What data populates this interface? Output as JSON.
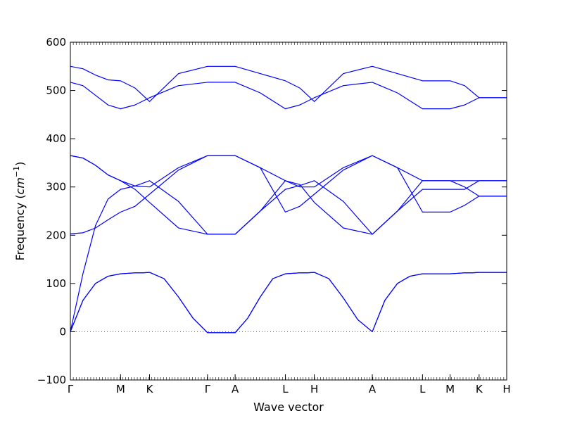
{
  "chart_data": {
    "type": "line",
    "title": "",
    "xlabel": "Wave vector",
    "ylabel": "Frequency",
    "ylabel_unit": "cm",
    "ylabel_unit_exponent": "−1",
    "ylim": [
      -100,
      600
    ],
    "y_ticks": [
      -100,
      0,
      100,
      200,
      300,
      400,
      500,
      600
    ],
    "x_ticks": [
      {
        "label": "Γ",
        "value": 0.0
      },
      {
        "label": "M",
        "value": 1.0
      },
      {
        "label": "K",
        "value": 1.577
      },
      {
        "label": "Γ",
        "value": 2.732
      },
      {
        "label": "A",
        "value": 3.282
      },
      {
        "label": "L",
        "value": 4.282
      },
      {
        "label": "H",
        "value": 4.859
      },
      {
        "label": "A",
        "value": 6.014
      },
      {
        "label": "L",
        "value": 7.014
      },
      {
        "label": "M",
        "value": 7.564
      },
      {
        "label": "K",
        "value": 8.141
      },
      {
        "label": "H",
        "value": 8.691
      }
    ],
    "zero_line": true,
    "grid": false,
    "colors": {
      "series": "#0000ff",
      "zero_line": "#555555"
    },
    "series": [
      {
        "x": [
          0,
          0.25,
          0.5,
          0.75,
          1.0,
          1.144,
          1.289,
          1.433,
          1.577,
          1.866,
          2.154,
          2.443,
          2.732,
          3.007,
          3.282,
          3.532,
          3.782,
          4.032,
          4.282,
          4.426,
          4.571,
          4.715,
          4.859,
          5.148,
          5.437,
          5.725,
          6.014,
          6.264,
          6.514,
          6.764,
          7.014,
          7.289,
          7.564,
          7.708,
          7.853,
          7.997,
          8.141,
          8.416,
          8.691
        ],
        "y": [
          0,
          65,
          100,
          115,
          120,
          121,
          122,
          122,
          123,
          110,
          72,
          28,
          -2,
          -2,
          -2,
          28,
          72,
          110,
          120,
          121,
          122,
          122,
          123,
          110,
          70,
          25,
          0,
          65,
          100,
          115,
          120,
          120,
          120,
          121,
          122,
          122,
          123,
          123,
          123
        ]
      },
      {
        "x": [
          0,
          0.25,
          0.5,
          0.75,
          1.0,
          1.144,
          1.289,
          1.433,
          1.577,
          1.866,
          2.154,
          2.443,
          2.732,
          3.007,
          3.282,
          3.532,
          3.782,
          4.032,
          4.282,
          4.426,
          4.571,
          4.715,
          4.859,
          5.148,
          5.437,
          5.725,
          6.014,
          6.264,
          6.514,
          6.764,
          7.014,
          7.289,
          7.564,
          7.708,
          7.853,
          7.997,
          8.141,
          8.416,
          8.691
        ],
        "y": [
          0,
          65,
          100,
          115,
          120,
          121,
          122,
          122,
          123,
          110,
          72,
          28,
          -2,
          -2,
          -2,
          28,
          72,
          110,
          120,
          121,
          122,
          122,
          123,
          110,
          70,
          25,
          0,
          65,
          100,
          115,
          120,
          120,
          120,
          121,
          122,
          122,
          123,
          123,
          123
        ]
      },
      {
        "x": [
          0,
          0.25,
          0.5,
          0.75,
          1.0,
          1.289,
          1.577,
          2.154,
          2.732,
          3.007,
          3.282,
          3.782,
          4.282,
          4.571,
          4.859,
          5.437,
          6.014,
          6.514,
          7.014,
          7.564,
          7.853,
          8.141,
          8.416,
          8.691
        ],
        "y": [
          0,
          120,
          220,
          275,
          295,
          302,
          313,
          270,
          202,
          202,
          202,
          250,
          295,
          303,
          313,
          270,
          202,
          250,
          295,
          295,
          295,
          313,
          313,
          313
        ]
      },
      {
        "x": [
          0,
          0.25,
          0.5,
          0.75,
          1.0,
          1.289,
          1.577,
          2.154,
          2.732,
          3.007,
          3.282,
          3.782,
          4.282,
          4.571,
          4.859,
          5.437,
          6.014,
          6.514,
          7.014,
          7.564,
          7.853,
          8.141,
          8.416,
          8.691
        ],
        "y": [
          203,
          205,
          215,
          232,
          248,
          260,
          285,
          335,
          365,
          365,
          365,
          340,
          248,
          260,
          285,
          335,
          365,
          340,
          248,
          248,
          262,
          281,
          281,
          281
        ]
      },
      {
        "x": [
          0,
          0.25,
          0.5,
          0.75,
          1.0,
          1.289,
          1.577,
          2.154,
          2.732,
          3.007,
          3.282,
          3.782,
          4.282,
          4.571,
          4.859,
          5.437,
          6.014,
          6.514,
          7.014,
          7.564,
          7.853,
          8.141,
          8.416,
          8.691
        ],
        "y": [
          365,
          360,
          345,
          325,
          313,
          295,
          268,
          215,
          202,
          202,
          202,
          250,
          313,
          305,
          268,
          215,
          202,
          250,
          313,
          313,
          300,
          281,
          281,
          281
        ]
      },
      {
        "x": [
          0,
          0.25,
          0.5,
          0.75,
          1.0,
          1.289,
          1.577,
          2.154,
          2.732,
          3.007,
          3.282,
          3.782,
          4.282,
          4.571,
          4.859,
          5.437,
          6.014,
          6.514,
          7.014,
          7.564,
          7.853,
          8.141,
          8.416,
          8.691
        ],
        "y": [
          365,
          360,
          345,
          325,
          313,
          302,
          300,
          340,
          365,
          365,
          365,
          340,
          313,
          300,
          300,
          340,
          365,
          340,
          313,
          313,
          313,
          313,
          313,
          313
        ]
      },
      {
        "x": [
          0,
          0.25,
          0.5,
          0.75,
          1.0,
          1.289,
          1.577,
          2.154,
          2.732,
          3.007,
          3.282,
          3.782,
          4.282,
          4.571,
          4.859,
          5.437,
          6.014,
          6.514,
          7.014,
          7.564,
          7.853,
          8.141,
          8.416,
          8.691
        ],
        "y": [
          517,
          510,
          490,
          470,
          462,
          470,
          485,
          510,
          517,
          517,
          517,
          495,
          462,
          470,
          485,
          510,
          517,
          495,
          462,
          462,
          470,
          485,
          485,
          485
        ]
      },
      {
        "x": [
          0,
          0.25,
          0.5,
          0.75,
          1.0,
          1.289,
          1.577,
          2.154,
          2.732,
          3.007,
          3.282,
          3.782,
          4.282,
          4.571,
          4.859,
          5.437,
          6.014,
          6.514,
          7.014,
          7.564,
          7.853,
          8.141,
          8.416,
          8.691
        ],
        "y": [
          550,
          545,
          532,
          522,
          520,
          505,
          477,
          535,
          550,
          550,
          550,
          535,
          520,
          505,
          477,
          535,
          550,
          535,
          520,
          520,
          510,
          485,
          485,
          485
        ]
      }
    ]
  }
}
